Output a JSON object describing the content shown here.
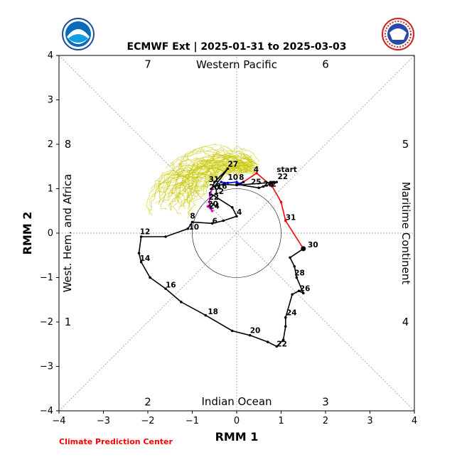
{
  "chart_data": {
    "type": "line",
    "title": "ECMWF Ext | 2025-01-31 to 2025-03-03",
    "xlabel": "RMM 1",
    "ylabel": "RMM 2",
    "xlim": [
      -4,
      4
    ],
    "ylim": [
      -4,
      4
    ],
    "xticks": [
      -4,
      -3,
      -2,
      -1,
      0,
      1,
      2,
      3,
      4
    ],
    "yticks": [
      -4,
      -3,
      -2,
      -1,
      0,
      1,
      2,
      3,
      4
    ],
    "tick_labels_x": [
      "−4",
      "−3",
      "−2",
      "−1",
      "0",
      "1",
      "2",
      "3",
      "4"
    ],
    "tick_labels_y": [
      "−4",
      "−3",
      "−2",
      "−1",
      "0",
      "1",
      "2",
      "3",
      "4"
    ],
    "phase_labels": [
      {
        "text": "1",
        "x": -3.8,
        "y": -2
      },
      {
        "text": "2",
        "x": -2,
        "y": -3.8
      },
      {
        "text": "3",
        "x": 2,
        "y": -3.8
      },
      {
        "text": "4",
        "x": 3.8,
        "y": -2
      },
      {
        "text": "5",
        "x": 3.8,
        "y": 2
      },
      {
        "text": "6",
        "x": 2,
        "y": 3.8
      },
      {
        "text": "7",
        "x": -2,
        "y": 3.8
      },
      {
        "text": "8",
        "x": -3.8,
        "y": 2
      }
    ],
    "regions": {
      "top": "Western Pacific",
      "bottom": "Indian Ocean",
      "left": "West. Hem. and Africa",
      "right": "Maritime Continent"
    },
    "credit": "Climate Prediction Center",
    "series": [
      {
        "color": "#ff0000",
        "points": [
          [
            1.5,
            -0.35
          ],
          [
            1.1,
            0.28
          ],
          [
            1.0,
            0.7
          ],
          [
            0.8,
            1.05
          ],
          [
            0.45,
            1.35
          ],
          [
            0.15,
            1.15
          ]
        ],
        "labels": [
          {
            "text": "start",
            "x": 0.9,
            "y": 1.38
          },
          {
            "text": "22",
            "x": 0.92,
            "y": 1.22
          },
          {
            "text": "4",
            "x": 0.38,
            "y": 1.38
          },
          {
            "text": "31",
            "x": 1.1,
            "y": 0.3
          }
        ]
      },
      {
        "color": "#000000",
        "points": [
          [
            0.15,
            1.15
          ],
          [
            0.0,
            1.1
          ],
          [
            0.5,
            1.02
          ],
          [
            0.6,
            1.05
          ],
          [
            0.75,
            1.1
          ],
          [
            0.9,
            1.15
          ],
          [
            0.0,
            1.08
          ],
          [
            -0.3,
            1.1
          ],
          [
            -0.5,
            1.05
          ],
          [
            -0.2,
            1.45
          ],
          [
            -0.5,
            1.15
          ],
          [
            -0.55,
            1.0
          ],
          [
            -0.6,
            0.9
          ],
          [
            -0.1,
            0.58
          ],
          [
            0.0,
            0.38
          ],
          [
            -0.3,
            0.28
          ],
          [
            -0.55,
            0.22
          ],
          [
            -1.0,
            0.25
          ],
          [
            -1.1,
            0.1
          ],
          [
            -1.6,
            -0.08
          ],
          [
            -2.15,
            -0.08
          ],
          [
            -2.2,
            -0.45
          ],
          [
            -2.15,
            -0.65
          ],
          [
            -1.95,
            -1.0
          ],
          [
            -1.6,
            -1.25
          ],
          [
            -1.25,
            -1.55
          ],
          [
            -0.7,
            -1.85
          ],
          [
            -0.1,
            -2.2
          ],
          [
            0.3,
            -2.3
          ],
          [
            0.7,
            -2.45
          ],
          [
            0.9,
            -2.55
          ],
          [
            1.05,
            -2.4
          ],
          [
            1.1,
            -2.1
          ],
          [
            1.1,
            -1.9
          ],
          [
            1.25,
            -1.38
          ],
          [
            1.4,
            -1.3
          ],
          [
            1.5,
            -1.35
          ],
          [
            1.35,
            -1.0
          ],
          [
            1.3,
            -0.75
          ],
          [
            1.2,
            -0.55
          ],
          [
            1.5,
            -0.35
          ]
        ],
        "labels": [
          {
            "text": "8",
            "x": 0.05,
            "y": 1.2
          },
          {
            "text": "25",
            "x": 0.32,
            "y": 1.1
          },
          {
            "text": "23",
            "x": 0.6,
            "y": 1.05
          },
          {
            "text": "2",
            "x": 0.78,
            "y": 1.05
          },
          {
            "text": "10",
            "x": -0.2,
            "y": 1.2
          },
          {
            "text": "27",
            "x": -0.2,
            "y": 1.5
          },
          {
            "text": "31",
            "x": -0.63,
            "y": 1.15
          },
          {
            "text": "4",
            "x": 0.0,
            "y": 0.42
          },
          {
            "text": "6",
            "x": -0.55,
            "y": 0.22
          },
          {
            "text": "8",
            "x": -1.05,
            "y": 0.33
          },
          {
            "text": "10",
            "x": -1.08,
            "y": 0.08
          },
          {
            "text": "12",
            "x": -2.18,
            "y": -0.02
          },
          {
            "text": "14",
            "x": -2.18,
            "y": -0.62
          },
          {
            "text": "16",
            "x": -1.6,
            "y": -1.22
          },
          {
            "text": "18",
            "x": -0.65,
            "y": -1.82
          },
          {
            "text": "20",
            "x": 0.3,
            "y": -2.25
          },
          {
            "text": "22",
            "x": 0.9,
            "y": -2.55
          },
          {
            "text": "24",
            "x": 1.12,
            "y": -1.85
          },
          {
            "text": "26",
            "x": 1.42,
            "y": -1.3
          },
          {
            "text": "28",
            "x": 1.3,
            "y": -0.95
          },
          {
            "text": "30",
            "x": 1.6,
            "y": -0.32
          },
          {
            "text": "12",
            "x": -0.52,
            "y": 0.88
          },
          {
            "text": "16",
            "x": -0.45,
            "y": 1.0
          },
          {
            "text": "20",
            "x": -0.62,
            "y": 0.98
          },
          {
            "text": "20",
            "x": -0.65,
            "y": 0.6
          },
          {
            "text": "22",
            "x": -0.63,
            "y": 0.75
          },
          {
            "text": "24",
            "x": -0.62,
            "y": 0.55
          }
        ]
      },
      {
        "color": "#0000dd",
        "points": [
          [
            -0.35,
            1.15
          ],
          [
            -0.2,
            1.13
          ],
          [
            0.0,
            1.15
          ],
          [
            0.1,
            1.1
          ]
        ],
        "labels": []
      },
      {
        "color": "#dd00dd",
        "points": [
          [
            -0.55,
            1.0
          ],
          [
            -0.6,
            0.85
          ],
          [
            -0.62,
            0.7
          ],
          [
            -0.6,
            0.6
          ],
          [
            -0.55,
            0.5
          ],
          [
            -0.65,
            0.6
          ]
        ],
        "labels": []
      }
    ],
    "ensemble": {
      "color": "#c8c800",
      "count": 50,
      "note": "ensemble member tracks"
    }
  }
}
